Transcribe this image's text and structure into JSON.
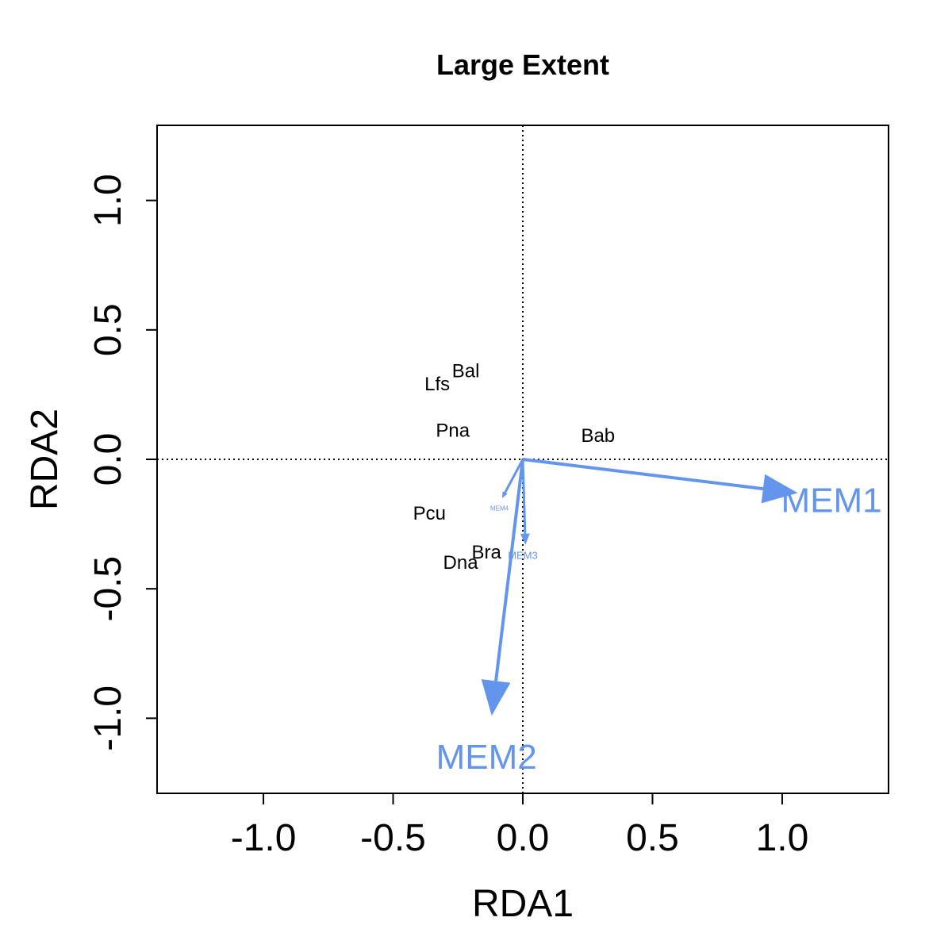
{
  "chart_data": {
    "type": "scatter",
    "title": "Large Extent",
    "xlabel": "RDA1",
    "ylabel": "RDA2",
    "xlim": [
      -1.41,
      1.41
    ],
    "ylim": [
      -1.29,
      1.29
    ],
    "x_ticks": [
      -1.0,
      -0.5,
      0.0,
      0.5,
      1.0
    ],
    "x_tick_labels": [
      "-1.0",
      "-0.5",
      "0.0",
      "0.5",
      "1.0"
    ],
    "y_ticks": [
      -1.0,
      -0.5,
      0.0,
      0.5,
      1.0
    ],
    "y_tick_labels": [
      "-1.0",
      "-0.5",
      "0.0",
      "0.5",
      "1.0"
    ],
    "reference_lines": {
      "x": 0,
      "y": 0,
      "style": "dotted"
    },
    "vector_color": "#6495ED",
    "species": [
      {
        "label": "Bal",
        "x": -0.22,
        "y": 0.34
      },
      {
        "label": "Lfs",
        "x": -0.33,
        "y": 0.29
      },
      {
        "label": "Pna",
        "x": -0.27,
        "y": 0.11
      },
      {
        "label": "Bab",
        "x": 0.29,
        "y": 0.09
      },
      {
        "label": "Pcu",
        "x": -0.36,
        "y": -0.21
      },
      {
        "label": "Bra",
        "x": -0.14,
        "y": -0.36
      },
      {
        "label": "Dna",
        "x": -0.24,
        "y": -0.4
      }
    ],
    "vectors": [
      {
        "name": "MEM1",
        "x": 1.06,
        "y": -0.13,
        "label_x": 1.19,
        "label_y": -0.16,
        "label_size": "large"
      },
      {
        "name": "MEM2",
        "x": -0.12,
        "y": -0.99,
        "label_x": -0.14,
        "label_y": -1.15,
        "label_size": "large"
      },
      {
        "name": "MEM3",
        "x": 0.01,
        "y": -0.33,
        "label_x": 0.0,
        "label_y": -0.37,
        "label_size": "small"
      },
      {
        "name": "MEM4",
        "x": -0.08,
        "y": -0.15,
        "label_x": -0.09,
        "label_y": -0.19,
        "label_size": "tiny"
      }
    ]
  }
}
